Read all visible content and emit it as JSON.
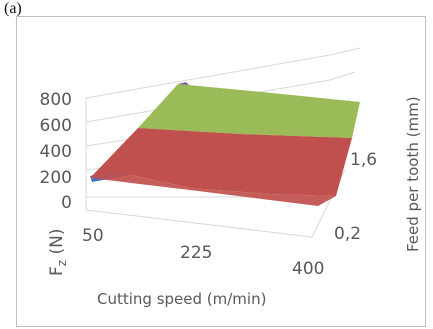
{
  "panel_label": "(a)",
  "chart_data": {
    "type": "surface",
    "title": "",
    "xlabel": "Cutting speed (m/min)",
    "ylabel": "Feed per tooth (mm)",
    "zlabel_main": "F",
    "zlabel_sub": "z",
    "zlabel_unit": " (N)",
    "x_ticks": [
      "50",
      "225",
      "400"
    ],
    "y_ticks": [
      "0,2",
      "1,6"
    ],
    "z_ticks": [
      "0",
      "200",
      "400",
      "600",
      "800"
    ],
    "zlim": [
      0,
      800
    ],
    "bands": [
      {
        "range": "0-200",
        "color": "#4472c4"
      },
      {
        "range": "200-400",
        "color": "#ed7d31"
      },
      {
        "range": "400-600",
        "color": "#c0504d"
      },
      {
        "range": "600-800",
        "color": "#9bbb59"
      }
    ],
    "grid": true
  }
}
